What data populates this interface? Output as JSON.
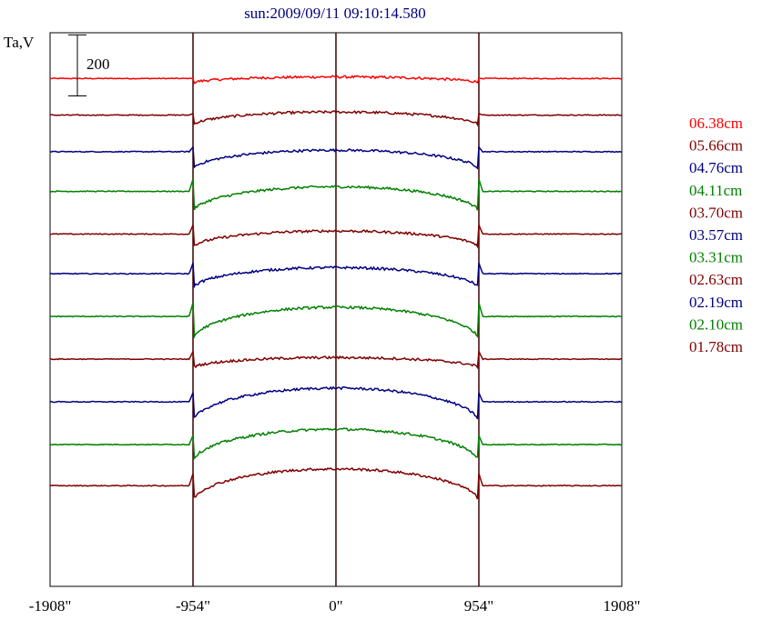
{
  "chart_data": {
    "type": "line",
    "title": "sun:2009/09/11 09:10:14.580",
    "ylabel": "Ta,V",
    "scale_bar_label": "200",
    "scale_bar_value": 200,
    "xlim": [
      -1908,
      1908
    ],
    "xticks": [
      {
        "value": -1908,
        "label": "-1908\""
      },
      {
        "value": -954,
        "label": "-954\""
      },
      {
        "value": 0,
        "label": "0\""
      },
      {
        "value": 954,
        "label": "954\""
      },
      {
        "value": 1908,
        "label": "1908\""
      }
    ],
    "vlines": [
      -954,
      0,
      954
    ],
    "series": [
      {
        "name": "06.38cm",
        "color": "#ff0000",
        "baseline": 0,
        "disk_drop": 15,
        "disk_amp": 20,
        "limb_spike": 0
      },
      {
        "name": "05.66cm",
        "color": "#800000",
        "baseline": -120,
        "disk_drop": 35,
        "disk_amp": 45,
        "limb_spike": 5
      },
      {
        "name": "04.76cm",
        "color": "#000080",
        "baseline": -240,
        "disk_drop": 60,
        "disk_amp": 65,
        "limb_spike": 15
      },
      {
        "name": "04.11cm",
        "color": "#008000",
        "baseline": -370,
        "disk_drop": 70,
        "disk_amp": 85,
        "limb_spike": 40
      },
      {
        "name": "03.70cm",
        "color": "#800000",
        "baseline": -510,
        "disk_drop": 45,
        "disk_amp": 55,
        "limb_spike": 30
      },
      {
        "name": "03.57cm",
        "color": "#000080",
        "baseline": -640,
        "disk_drop": 50,
        "disk_amp": 70,
        "limb_spike": 35
      },
      {
        "name": "03.31cm",
        "color": "#008000",
        "baseline": -780,
        "disk_drop": 80,
        "disk_amp": 110,
        "limb_spike": 45
      },
      {
        "name": "02.63cm",
        "color": "#800000",
        "baseline": -920,
        "disk_drop": 30,
        "disk_amp": 35,
        "limb_spike": 25
      },
      {
        "name": "02.19cm",
        "color": "#000080",
        "baseline": -1060,
        "disk_drop": 70,
        "disk_amp": 115,
        "limb_spike": 30
      },
      {
        "name": "02.10cm",
        "color": "#008000",
        "baseline": -1200,
        "disk_drop": 60,
        "disk_amp": 110,
        "limb_spike": 30
      },
      {
        "name": "01.78cm",
        "color": "#800000",
        "baseline": -1335,
        "disk_drop": 55,
        "disk_amp": 110,
        "limb_spike": 40
      }
    ],
    "ylim": [
      -1665,
      150
    ],
    "grid": false,
    "legend": "right"
  }
}
